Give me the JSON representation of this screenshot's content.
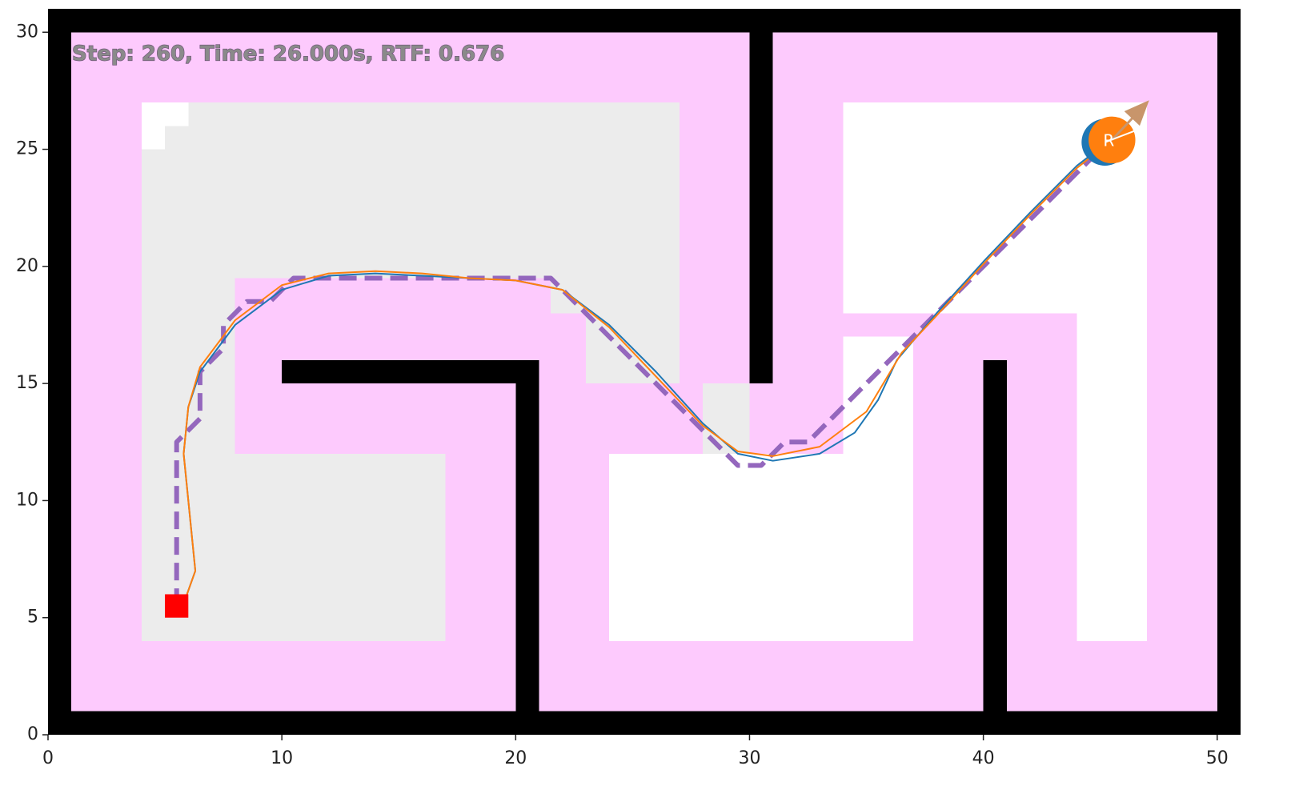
{
  "chart_data": {
    "type": "line",
    "annotation": "Step: 260, Time: 26.000s, RTF: 0.676",
    "xlim": [
      0,
      51
    ],
    "ylim": [
      0,
      31
    ],
    "xticks": [
      0,
      10,
      20,
      30,
      40,
      50
    ],
    "yticks": [
      0,
      5,
      10,
      15,
      20,
      25,
      30
    ],
    "background_color": "#fdcafd",
    "interior": [
      1,
      1,
      50,
      30
    ],
    "explored_color": "#ececec",
    "explored_cells": [
      [
        4,
        19.5,
        27,
        27
      ],
      [
        4,
        4,
        8,
        19.5
      ],
      [
        8,
        4,
        17,
        12
      ],
      [
        23,
        15,
        27,
        19.5
      ],
      [
        21.5,
        18,
        23,
        19.5
      ],
      [
        28,
        11,
        30,
        15
      ],
      [
        6.6,
        16,
        8,
        18
      ]
    ],
    "free_color": "#ffffff",
    "free_cells": [
      [
        4,
        26,
        6,
        27
      ],
      [
        4,
        25,
        5,
        26
      ],
      [
        24,
        4,
        37,
        12
      ],
      [
        34,
        12,
        37,
        17
      ],
      [
        34,
        18,
        47,
        27
      ],
      [
        44,
        4,
        47,
        18
      ]
    ],
    "wall_color": "#000000",
    "walls": [
      [
        0,
        0,
        51,
        1
      ],
      [
        0,
        30,
        51,
        31
      ],
      [
        0,
        0,
        1,
        31
      ],
      [
        50,
        0,
        51,
        31
      ],
      [
        30,
        15,
        31,
        30
      ],
      [
        10,
        15,
        21,
        16
      ],
      [
        20,
        1,
        21,
        16
      ],
      [
        40,
        1,
        41,
        16
      ]
    ],
    "series": [
      {
        "color": "#9467bd",
        "dashed": true,
        "x": [
          5.5,
          5.5,
          6.5,
          6.5,
          7.5,
          7.5,
          8.5,
          9.5,
          10.5,
          21.5,
          29.5,
          30.5,
          31.5,
          32.5,
          45.5
        ],
        "y": [
          5.5,
          12.5,
          13.5,
          15.5,
          16.5,
          17.5,
          18.5,
          18.5,
          19.5,
          19.5,
          11.5,
          11.5,
          12.5,
          12.5,
          25.5
        ]
      },
      {
        "color": "#1f77b4",
        "dashed": false,
        "x": [
          5.8,
          6.3,
          6.0,
          5.8,
          6.0,
          6.5,
          8,
          10,
          12,
          14,
          16,
          18,
          20,
          22,
          24,
          26,
          28,
          29.5,
          31,
          33,
          34.5,
          35.5,
          36.3,
          38,
          40,
          42,
          44,
          45.3
        ],
        "y": [
          5.6,
          7,
          10,
          12,
          14,
          15.5,
          17.5,
          19,
          19.6,
          19.7,
          19.6,
          19.5,
          19.4,
          19,
          17.5,
          15.5,
          13.3,
          12.0,
          11.7,
          12.0,
          12.9,
          14.3,
          16,
          18,
          20.2,
          22.3,
          24.3,
          25.3
        ]
      },
      {
        "color": "#ff7f0e",
        "dashed": false,
        "x": [
          5.8,
          6.3,
          6.0,
          5.8,
          6.0,
          6.5,
          8,
          10,
          12,
          14,
          16,
          18,
          20,
          22,
          24,
          26,
          28,
          29.5,
          31,
          33,
          35,
          36.5,
          38,
          40,
          42,
          44,
          45.5
        ],
        "y": [
          5.6,
          7,
          10,
          12,
          14,
          15.7,
          17.7,
          19.2,
          19.7,
          19.8,
          19.7,
          19.5,
          19.4,
          19.0,
          17.4,
          15.3,
          13.2,
          12.1,
          11.9,
          12.3,
          13.8,
          16.3,
          17.9,
          20.1,
          22.2,
          24.2,
          25.4
        ]
      }
    ],
    "goal": {
      "x": 5.5,
      "y": 5.5,
      "color": "#ff0000"
    },
    "robot": {
      "x": 45.2,
      "y": 25.3,
      "color": "#1f77b4"
    },
    "reference": {
      "x": 45.5,
      "y": 25.4,
      "color": "#ff7f0e",
      "label": "R"
    },
    "heading": {
      "x": [
        45.5,
        47
      ],
      "y": [
        25.4,
        27
      ],
      "color": "#c8956b"
    }
  }
}
